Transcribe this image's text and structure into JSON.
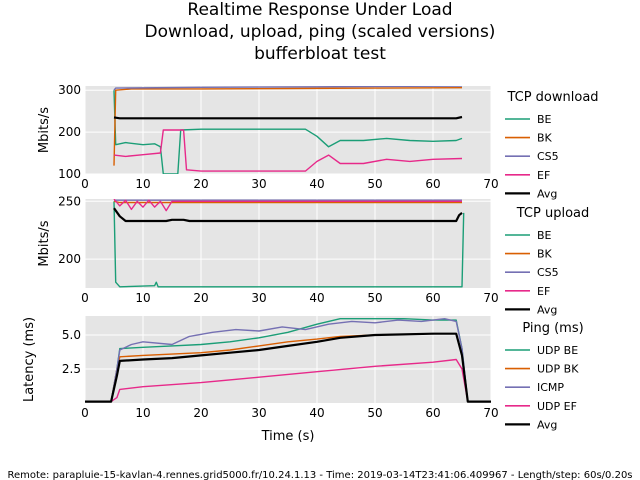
{
  "title_lines": [
    "Realtime Response Under Load",
    "Download, upload, ping (scaled versions)",
    "bufferbloat test"
  ],
  "footer": "Remote: parapluie-15-kavlan-4.rennes.grid5000.fr/10.24.1.13 - Time: 2019-03-14T23:41:06.409967 - Length/step: 60s/0.20s",
  "colors": {
    "BE": "#1b9e77",
    "BK": "#d95f02",
    "CS5": "#7570b3",
    "EF": "#e7298a",
    "Avg": "#000000",
    "background": "#e5e5e5",
    "grid": "#ffffff"
  },
  "chart_data": [
    {
      "type": "line",
      "ylabel": "Mbits/s",
      "xlim": [
        0,
        70
      ],
      "ylim": [
        100,
        310
      ],
      "xticks": [
        "0",
        "10",
        "20",
        "30",
        "40",
        "50",
        "60",
        "70"
      ],
      "yticks": [
        "100",
        "200",
        "300"
      ],
      "legend_title": "TCP download",
      "legend_position": "right",
      "series": [
        {
          "name": "BE",
          "color": "#1b9e77",
          "points": [
            [
              5,
              300
            ],
            [
              5.3,
              170
            ],
            [
              7,
              175
            ],
            [
              10,
              170
            ],
            [
              12,
              172
            ],
            [
              13,
              165
            ],
            [
              13.5,
              100
            ],
            [
              16,
              100
            ],
            [
              16.5,
              205
            ],
            [
              20,
              207
            ],
            [
              30,
              207
            ],
            [
              38,
              207
            ],
            [
              40,
              190
            ],
            [
              42,
              165
            ],
            [
              44,
              180
            ],
            [
              48,
              180
            ],
            [
              52,
              185
            ],
            [
              56,
              180
            ],
            [
              60,
              178
            ],
            [
              64,
              180
            ],
            [
              65,
              185
            ]
          ]
        },
        {
          "name": "BK",
          "color": "#d95f02",
          "points": [
            [
              5,
              120
            ],
            [
              5.3,
              300
            ],
            [
              8,
              303
            ],
            [
              20,
              303
            ],
            [
              35,
              304
            ],
            [
              50,
              305
            ],
            [
              65,
              306
            ]
          ]
        },
        {
          "name": "CS5",
          "color": "#7570b3",
          "points": [
            [
              5,
              300
            ],
            [
              5.3,
              305
            ],
            [
              20,
              307
            ],
            [
              40,
              308
            ],
            [
              65,
              310
            ]
          ]
        },
        {
          "name": "EF",
          "color": "#e7298a",
          "points": [
            [
              5,
              145
            ],
            [
              7,
              142
            ],
            [
              10,
              146
            ],
            [
              13,
              150
            ],
            [
              13.5,
              205
            ],
            [
              17,
              205
            ],
            [
              17.5,
              110
            ],
            [
              20,
              107
            ],
            [
              25,
              107
            ],
            [
              30,
              107
            ],
            [
              38,
              107
            ],
            [
              40,
              130
            ],
            [
              42,
              145
            ],
            [
              44,
              125
            ],
            [
              48,
              125
            ],
            [
              52,
              135
            ],
            [
              56,
              130
            ],
            [
              60,
              135
            ],
            [
              65,
              137
            ]
          ]
        },
        {
          "name": "Avg",
          "color": "#000000",
          "points": [
            [
              5,
              235
            ],
            [
              6,
              233
            ],
            [
              20,
              233
            ],
            [
              40,
              233
            ],
            [
              64,
              233
            ],
            [
              65,
              236
            ]
          ]
        }
      ]
    },
    {
      "type": "line",
      "ylabel": "Mbits/s",
      "xlim": [
        0,
        70
      ],
      "ylim": [
        175,
        252
      ],
      "xticks": [
        "0",
        "10",
        "20",
        "30",
        "40",
        "50",
        "60",
        "70"
      ],
      "yticks": [
        "200",
        "250"
      ],
      "legend_title": "TCP upload",
      "legend_position": "right",
      "series": [
        {
          "name": "BE",
          "color": "#1b9e77",
          "points": [
            [
              5,
              250
            ],
            [
              5.3,
              180
            ],
            [
              6,
              176
            ],
            [
              12,
              177
            ],
            [
              12.3,
              180
            ],
            [
              12.6,
              176
            ],
            [
              20,
              176
            ],
            [
              40,
              176
            ],
            [
              64,
              176
            ],
            [
              65,
              176
            ],
            [
              65.3,
              240
            ]
          ]
        },
        {
          "name": "BK",
          "color": "#d95f02",
          "points": [
            [
              5,
              250
            ],
            [
              6,
              249
            ],
            [
              20,
              249
            ],
            [
              40,
              249
            ],
            [
              65,
              249
            ]
          ]
        },
        {
          "name": "CS5",
          "color": "#7570b3",
          "points": [
            [
              5,
              251
            ],
            [
              20,
              251
            ],
            [
              40,
              251
            ],
            [
              65,
              251
            ]
          ]
        },
        {
          "name": "EF",
          "color": "#e7298a",
          "points": [
            [
              5,
              252
            ],
            [
              6,
              246
            ],
            [
              7,
              251
            ],
            [
              8,
              243
            ],
            [
              9,
              250
            ],
            [
              10,
              245
            ],
            [
              11,
              251
            ],
            [
              12,
              245
            ],
            [
              13,
              250
            ],
            [
              14,
              242
            ],
            [
              15,
              250
            ],
            [
              20,
              250
            ],
            [
              40,
              250
            ],
            [
              65,
              250
            ]
          ]
        },
        {
          "name": "Avg",
          "color": "#000000",
          "points": [
            [
              5,
              244
            ],
            [
              6,
              237
            ],
            [
              7,
              233
            ],
            [
              10,
              233
            ],
            [
              14,
              233
            ],
            [
              15,
              234
            ],
            [
              17,
              234
            ],
            [
              18,
              233
            ],
            [
              40,
              233
            ],
            [
              64,
              233
            ],
            [
              64.5,
              238
            ],
            [
              65,
              240
            ]
          ]
        }
      ]
    },
    {
      "type": "line",
      "xlabel": "Time (s)",
      "ylabel": "Latency (ms)",
      "xlim": [
        0,
        70
      ],
      "ylim": [
        0,
        6.4
      ],
      "xticks": [
        "0",
        "10",
        "20",
        "30",
        "40",
        "50",
        "60",
        "70"
      ],
      "yticks": [
        "2.5",
        "5.0"
      ],
      "legend_title": "Ping (ms)",
      "legend_position": "right",
      "series": [
        {
          "name": "UDP BE",
          "color": "#1b9e77",
          "points": [
            [
              0,
              0.1
            ],
            [
              4.5,
              0.1
            ],
            [
              5.5,
              2.5
            ],
            [
              6,
              4.0
            ],
            [
              10,
              4.1
            ],
            [
              15,
              4.2
            ],
            [
              20,
              4.3
            ],
            [
              25,
              4.5
            ],
            [
              30,
              4.8
            ],
            [
              35,
              5.2
            ],
            [
              40,
              5.8
            ],
            [
              44,
              6.2
            ],
            [
              50,
              6.2
            ],
            [
              55,
              6.2
            ],
            [
              60,
              6.1
            ],
            [
              64,
              6.1
            ],
            [
              65,
              4
            ],
            [
              66,
              0.1
            ],
            [
              70,
              0.1
            ]
          ]
        },
        {
          "name": "UDP BK",
          "color": "#d95f02",
          "points": [
            [
              0,
              0.1
            ],
            [
              4.5,
              0.1
            ],
            [
              5.5,
              2.5
            ],
            [
              6,
              3.4
            ],
            [
              10,
              3.5
            ],
            [
              15,
              3.6
            ],
            [
              20,
              3.7
            ],
            [
              25,
              3.9
            ],
            [
              30,
              4.2
            ],
            [
              35,
              4.5
            ],
            [
              40,
              4.7
            ],
            [
              44,
              4.9
            ],
            [
              50,
              5.0
            ],
            [
              60,
              5.1
            ],
            [
              64,
              5.1
            ],
            [
              65,
              3.5
            ],
            [
              66,
              0.1
            ],
            [
              70,
              0.1
            ]
          ]
        },
        {
          "name": "ICMP",
          "color": "#7570b3",
          "points": [
            [
              0,
              0.1
            ],
            [
              4.5,
              0.1
            ],
            [
              5.5,
              2.5
            ],
            [
              6,
              3.9
            ],
            [
              8,
              4.3
            ],
            [
              10,
              4.5
            ],
            [
              15,
              4.3
            ],
            [
              18,
              4.9
            ],
            [
              22,
              5.2
            ],
            [
              26,
              5.4
            ],
            [
              30,
              5.3
            ],
            [
              34,
              5.6
            ],
            [
              38,
              5.4
            ],
            [
              42,
              5.8
            ],
            [
              46,
              6.0
            ],
            [
              50,
              5.9
            ],
            [
              54,
              6.1
            ],
            [
              58,
              6.0
            ],
            [
              62,
              6.2
            ],
            [
              64,
              6.0
            ],
            [
              65,
              4
            ],
            [
              66,
              0.1
            ],
            [
              70,
              0.1
            ]
          ]
        },
        {
          "name": "UDP EF",
          "color": "#e7298a",
          "points": [
            [
              0,
              0.1
            ],
            [
              4.5,
              0.1
            ],
            [
              5.5,
              0.4
            ],
            [
              6,
              1.0
            ],
            [
              10,
              1.2
            ],
            [
              20,
              1.5
            ],
            [
              30,
              1.9
            ],
            [
              40,
              2.3
            ],
            [
              50,
              2.7
            ],
            [
              60,
              3.0
            ],
            [
              64,
              3.2
            ],
            [
              65,
              2.5
            ],
            [
              66,
              0.1
            ],
            [
              70,
              0.1
            ]
          ]
        },
        {
          "name": "Avg",
          "color": "#000000",
          "points": [
            [
              0,
              0.1
            ],
            [
              4.5,
              0.1
            ],
            [
              5.5,
              2.0
            ],
            [
              6,
              3.1
            ],
            [
              10,
              3.2
            ],
            [
              15,
              3.3
            ],
            [
              20,
              3.5
            ],
            [
              25,
              3.7
            ],
            [
              30,
              3.9
            ],
            [
              35,
              4.2
            ],
            [
              40,
              4.5
            ],
            [
              44,
              4.8
            ],
            [
              50,
              5.0
            ],
            [
              60,
              5.1
            ],
            [
              64,
              5.1
            ],
            [
              65,
              3.5
            ],
            [
              66,
              0.1
            ],
            [
              70,
              0.1
            ]
          ]
        }
      ]
    }
  ]
}
